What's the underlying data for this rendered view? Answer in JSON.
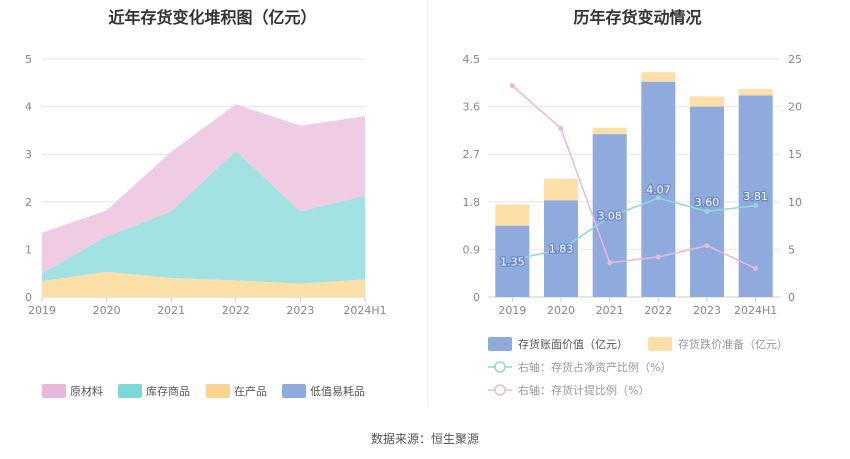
{
  "source": "数据来源：恒生聚源",
  "chart_data": [
    {
      "type": "area",
      "title": "近年存货变化堆积图（亿元）",
      "x": [
        "2019",
        "2020",
        "2021",
        "2022",
        "2023",
        "2024H1"
      ],
      "yticks": [
        "0",
        "1",
        "2",
        "3",
        "4",
        "5"
      ],
      "ylim": [
        0,
        5
      ],
      "stacked": true,
      "series": [
        {
          "name": "低值易耗品",
          "color": "#8faadc",
          "values": [
            0,
            0,
            0,
            0,
            0,
            0
          ]
        },
        {
          "name": "在产品",
          "color": "#fddfa8",
          "values": [
            0.33,
            0.53,
            0.4,
            0.35,
            0.28,
            0.37
          ]
        },
        {
          "name": "库存商品",
          "color": "#a2e2e2",
          "values": [
            0.17,
            0.74,
            1.4,
            2.72,
            1.52,
            1.76
          ]
        },
        {
          "name": "原材料",
          "color": "#efcce4",
          "values": [
            0.85,
            0.55,
            1.25,
            0.98,
            1.8,
            1.67
          ]
        }
      ],
      "legend": [
        "原材料",
        "库存商品",
        "在产品",
        "低值易耗品"
      ],
      "legend_colors": [
        "#e8b8dc",
        "#7fd8d8",
        "#fcd490",
        "#8faadc"
      ],
      "legend_position": "bottom",
      "grid": true
    },
    {
      "type": "bar",
      "title": "历年存货变动情况",
      "categories": [
        "2019",
        "2020",
        "2021",
        "2022",
        "2023",
        "2024H1"
      ],
      "left_yticks": [
        "0",
        "0.9",
        "1.8",
        "2.7",
        "3.6",
        "4.5"
      ],
      "right_yticks": [
        "0",
        "5",
        "10",
        "15",
        "20",
        "25"
      ],
      "left_ylim": [
        0,
        4.5
      ],
      "right_ylim": [
        0,
        25
      ],
      "stacked": true,
      "series": [
        {
          "name": "存货账面价值（亿元）",
          "axis": "left",
          "kind": "bar",
          "color": "#8faadc",
          "values": [
            1.35,
            1.83,
            3.08,
            4.07,
            3.6,
            3.81
          ],
          "labels": [
            "1.35",
            "1.83",
            "3.08",
            "4.07",
            "3.60",
            "3.81"
          ]
        },
        {
          "name": "存货跌价准备（亿元）",
          "axis": "left",
          "kind": "bar",
          "color": "#fddfa8",
          "values": [
            0.4,
            0.4,
            0.12,
            0.18,
            0.19,
            0.12
          ]
        },
        {
          "name": "右轴：存货占净资产比例（%）",
          "axis": "right",
          "kind": "line",
          "color": "#8ed8d8",
          "values": [
            3.9,
            5.0,
            8.4,
            10.4,
            9.0,
            9.6
          ]
        },
        {
          "name": "右轴：存货计提比例（%）",
          "axis": "right",
          "kind": "line",
          "color": "#eab8d8",
          "values": [
            22.2,
            17.7,
            3.6,
            4.2,
            5.4,
            3.0
          ]
        }
      ],
      "legend_position": "bottom",
      "grid": true
    }
  ]
}
